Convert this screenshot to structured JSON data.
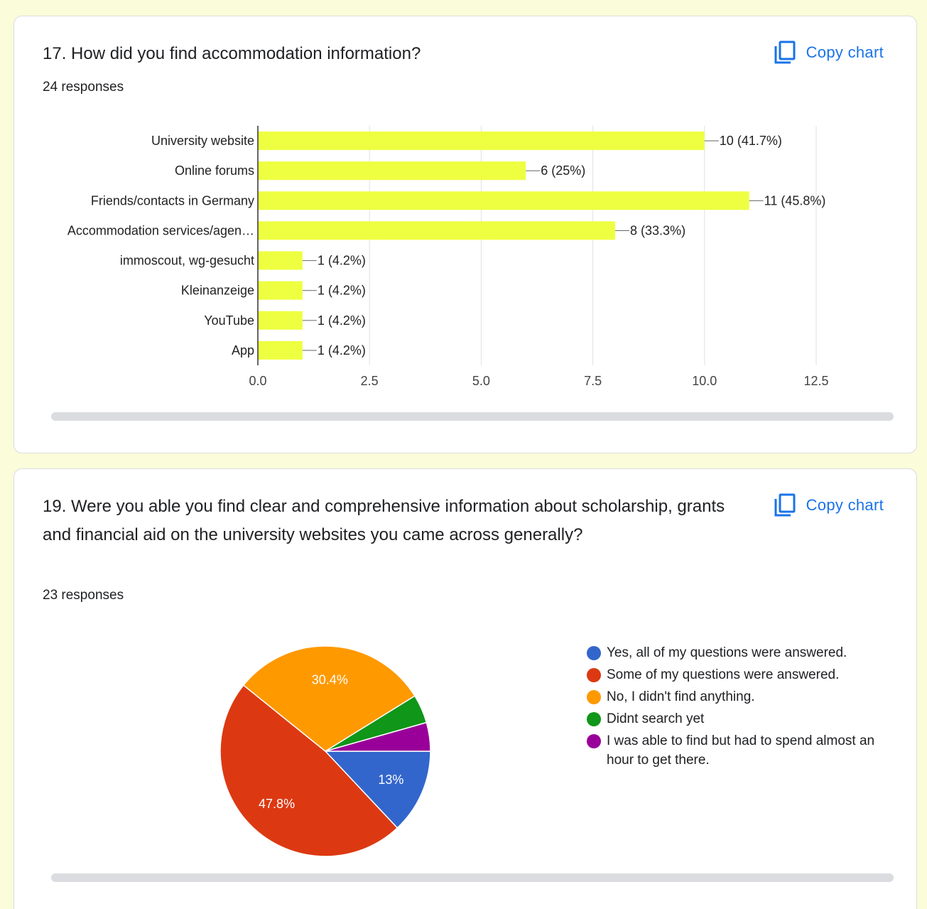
{
  "card1": {
    "title": "17. How did you find accommodation information?",
    "responses": "24 responses",
    "copy_label": "Copy chart"
  },
  "card2": {
    "title": "19. Were you able you find clear and comprehensive information about scholarship, grants and financial aid on the university websites you came across generally?",
    "responses": "23 responses",
    "copy_label": "Copy chart"
  },
  "icons": {
    "copy": "copy-icon"
  },
  "colors": {
    "bar": "#eeff41",
    "accent": "#1a73e8",
    "pie": [
      "#3366cc",
      "#dc3912",
      "#ff9900",
      "#109618",
      "#990099"
    ]
  },
  "chart_data": [
    {
      "type": "bar",
      "orientation": "horizontal",
      "categories": [
        "University website",
        "Online forums",
        "Friends/contacts in Germany",
        "Accommodation services/agen…",
        "immoscout, wg-gesucht",
        "Kleinanzeige",
        "YouTube",
        "App"
      ],
      "values": [
        10,
        6,
        11,
        8,
        1,
        1,
        1,
        1
      ],
      "data_labels": [
        "10 (41.7%)",
        "6 (25%)",
        "11 (45.8%)",
        "8 (33.3%)",
        "1 (4.2%)",
        "1 (4.2%)",
        "1 (4.2%)",
        "1 (4.2%)"
      ],
      "xlim": [
        0,
        12.5
      ],
      "xticks": [
        "0.0",
        "2.5",
        "5.0",
        "7.5",
        "10.0",
        "12.5"
      ],
      "xtick_values": [
        0,
        2.5,
        5,
        7.5,
        10,
        12.5
      ],
      "grid": true
    },
    {
      "type": "pie",
      "labels": [
        "Yes, all of my questions were answered.",
        "Some of my questions were answered.",
        "No, I didn't find anything.",
        "Didnt search yet",
        "I was able to find but had to spend almost an hour to get there."
      ],
      "values": [
        13,
        47.8,
        30.4,
        4.4,
        4.4
      ],
      "slice_labels": [
        "13%",
        "47.8%",
        "30.4%",
        "",
        ""
      ],
      "legend": "right"
    }
  ]
}
